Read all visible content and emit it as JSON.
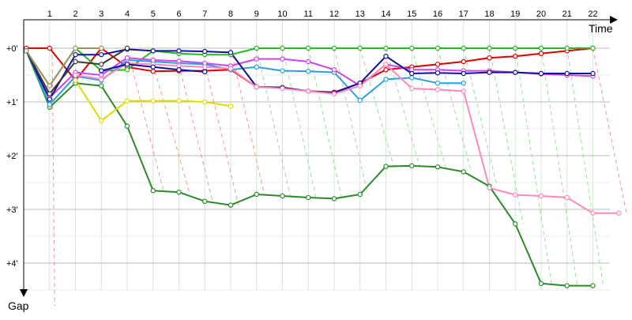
{
  "chart_data": {
    "type": "line",
    "xlabel": "Time",
    "ylabel": "Gap",
    "x": [
      1,
      2,
      3,
      4,
      5,
      6,
      7,
      8,
      9,
      10,
      11,
      12,
      13,
      14,
      15,
      16,
      17,
      18,
      19,
      20,
      21,
      22
    ],
    "xlim": [
      0,
      23.2
    ],
    "yticks": [
      "+0'",
      "+1'",
      "+2'",
      "+3'",
      "+4'"
    ],
    "ylim": [
      -0.6,
      4.8
    ],
    "grid": true,
    "series": [
      {
        "color": "#dd0000",
        "x": [
          0.1,
          1,
          2,
          3,
          4,
          5,
          6,
          7,
          8,
          9,
          10,
          11,
          12,
          13,
          14,
          15,
          16,
          17,
          18,
          19,
          20,
          21,
          22
        ],
        "values": [
          0,
          0,
          0.6,
          0,
          0.35,
          0.43,
          0.42,
          0.42,
          0.4,
          0.72,
          0.74,
          0.8,
          0.82,
          0.65,
          0.4,
          0.35,
          0.3,
          0.25,
          0.18,
          0.15,
          0.1,
          0.05,
          0
        ]
      },
      {
        "color": "#22bb22",
        "x": [
          0.1,
          1,
          2,
          3,
          4,
          5,
          6,
          7,
          8,
          9,
          10,
          11,
          12,
          13,
          14,
          15,
          16,
          17,
          18,
          19,
          20,
          21,
          22
        ],
        "values": [
          0.05,
          0.7,
          0,
          0.42,
          0.4,
          0.05,
          0.1,
          0.12,
          0.12,
          0,
          0,
          0,
          0,
          0,
          0,
          0,
          0,
          0,
          0,
          0,
          0,
          0,
          0
        ]
      },
      {
        "color": "#2a8a2a",
        "x": [
          0.1,
          1,
          2,
          3,
          4,
          5,
          6,
          7,
          8,
          9,
          10,
          11,
          12,
          13,
          14,
          15,
          16,
          17,
          18,
          19,
          20,
          21,
          22
        ],
        "values": [
          0.05,
          1.1,
          0.65,
          0.7,
          1.45,
          2.65,
          2.68,
          2.85,
          2.92,
          2.72,
          2.75,
          2.78,
          2.8,
          2.72,
          2.2,
          2.19,
          2.21,
          2.3,
          2.57,
          3.27,
          4.38,
          4.42,
          4.42
        ]
      },
      {
        "color": "#2aa0e0",
        "x": [
          0.1,
          1,
          2,
          3,
          4,
          5,
          6,
          7,
          8,
          9,
          10,
          11,
          12,
          13,
          14,
          15,
          16,
          17
        ],
        "values": [
          0.05,
          1.05,
          0.52,
          0.6,
          0.22,
          0.25,
          0.28,
          0.3,
          0.4,
          0.35,
          0.42,
          0.43,
          0.45,
          0.97,
          0.58,
          0.55,
          0.65,
          0.65
        ]
      },
      {
        "color": "#cc44ee",
        "x": [
          0.1,
          1,
          2,
          3,
          4,
          5,
          6,
          7,
          8,
          9,
          10,
          11,
          12,
          13,
          14,
          15,
          16,
          17,
          18,
          19,
          20,
          21,
          22
        ],
        "values": [
          0.05,
          0.92,
          0.45,
          0.5,
          0.18,
          0.22,
          0.24,
          0.28,
          0.33,
          0.2,
          0.2,
          0.25,
          0.4,
          0.7,
          0.3,
          0.4,
          0.4,
          0.42,
          0.42,
          0.45,
          0.48,
          0.5,
          0.52
        ]
      },
      {
        "color": "#111199",
        "x": [
          0.1,
          1,
          2,
          3,
          4,
          5,
          6,
          7,
          8,
          9,
          10,
          11,
          12,
          13,
          14,
          15,
          16,
          17,
          18,
          19,
          20,
          21,
          22
        ],
        "values": [
          0.05,
          0.95,
          0.12,
          0.12,
          0.02,
          0.05,
          0.05,
          0.06,
          0.08,
          0.72,
          0.73,
          0.8,
          0.83,
          0.65,
          0.15,
          0.47,
          0.46,
          0.47,
          0.45,
          0.45,
          0.47,
          0.47,
          0.47
        ]
      },
      {
        "color": "#3a3a3a",
        "x": [
          0.1,
          1,
          2,
          3,
          4
        ],
        "values": [
          0.05,
          0.85,
          0.25,
          0.3,
          0
        ]
      },
      {
        "color": "#a69060",
        "x": [
          0.1,
          1,
          2,
          3
        ],
        "values": [
          0.05,
          0.7,
          0,
          0
        ]
      },
      {
        "color": "#dddd00",
        "x": [
          2,
          3,
          4,
          5,
          6,
          7,
          8
        ],
        "values": [
          0.6,
          1.35,
          0.98,
          0.98,
          0.98,
          1,
          1.08
        ]
      },
      {
        "color": "#ff88bb",
        "x": [
          2,
          3,
          4,
          5,
          6,
          7,
          8,
          9,
          10,
          11,
          12,
          13,
          14,
          15,
          16,
          17,
          18,
          19,
          20,
          21,
          22,
          23
        ],
        "values": [
          0.5,
          0.58,
          0.28,
          0.3,
          0.33,
          0.35,
          0.38,
          0.72,
          0.75,
          0.8,
          0.85,
          0.7,
          0.3,
          0.75,
          0.77,
          0.8,
          2.6,
          2.73,
          2.75,
          2.78,
          3.07,
          3.07
        ]
      },
      {
        "color": "#1010aa",
        "x": [
          3,
          4,
          5,
          6,
          7
        ],
        "values": [
          0.42,
          0.3,
          0.35,
          0.4,
          0.44
        ]
      }
    ],
    "connectors": [
      {
        "color": "#ee9999",
        "from": [
          1.1,
          0
        ],
        "to": [
          1.2,
          4.8
        ]
      },
      {
        "color": "#ee9999",
        "from": [
          4.0,
          0
        ],
        "to": [
          5.4,
          2.65
        ]
      },
      {
        "color": "#ee9999",
        "from": [
          5.0,
          0.3
        ],
        "to": [
          6.4,
          2.68
        ]
      },
      {
        "color": "#ee9999",
        "from": [
          6.0,
          0.3
        ],
        "to": [
          7.3,
          2.85
        ]
      },
      {
        "color": "#ee9999",
        "from": [
          7.0,
          0.3
        ],
        "to": [
          8.3,
          2.92
        ]
      },
      {
        "color": "#ee9999",
        "from": [
          8.0,
          0
        ],
        "to": [
          9.3,
          2.72
        ]
      },
      {
        "color": "#99dd99",
        "from": [
          9.0,
          0
        ],
        "to": [
          10.3,
          2.75
        ]
      },
      {
        "color": "#99dd99",
        "from": [
          10.0,
          0
        ],
        "to": [
          11.3,
          2.78
        ]
      },
      {
        "color": "#99dd99",
        "from": [
          11.0,
          0
        ],
        "to": [
          12.3,
          2.8
        ]
      },
      {
        "color": "#99dd99",
        "from": [
          12.0,
          0
        ],
        "to": [
          13.3,
          2.72
        ]
      },
      {
        "color": "#99dd99",
        "from": [
          13.0,
          0
        ],
        "to": [
          14.3,
          2.2
        ]
      },
      {
        "color": "#99dd99",
        "from": [
          14.0,
          0
        ],
        "to": [
          15.3,
          2.19
        ]
      },
      {
        "color": "#99dd99",
        "from": [
          15.0,
          0
        ],
        "to": [
          16.3,
          2.21
        ]
      },
      {
        "color": "#99dd99",
        "from": [
          16.0,
          0
        ],
        "to": [
          17.3,
          2.3
        ]
      },
      {
        "color": "#99dd99",
        "from": [
          17.0,
          0
        ],
        "to": [
          18.3,
          2.57
        ]
      },
      {
        "color": "#99dd99",
        "from": [
          18.0,
          0
        ],
        "to": [
          19.3,
          3.27
        ]
      },
      {
        "color": "#99dd99",
        "from": [
          19.0,
          0
        ],
        "to": [
          20.4,
          4.38
        ]
      },
      {
        "color": "#99dd99",
        "from": [
          20.0,
          0
        ],
        "to": [
          21.4,
          4.42
        ]
      },
      {
        "color": "#99dd99",
        "from": [
          21.0,
          0
        ],
        "to": [
          22.4,
          4.42
        ]
      },
      {
        "color": "#ee9999",
        "from": [
          22.0,
          0
        ],
        "to": [
          23.3,
          3.07
        ]
      }
    ]
  }
}
